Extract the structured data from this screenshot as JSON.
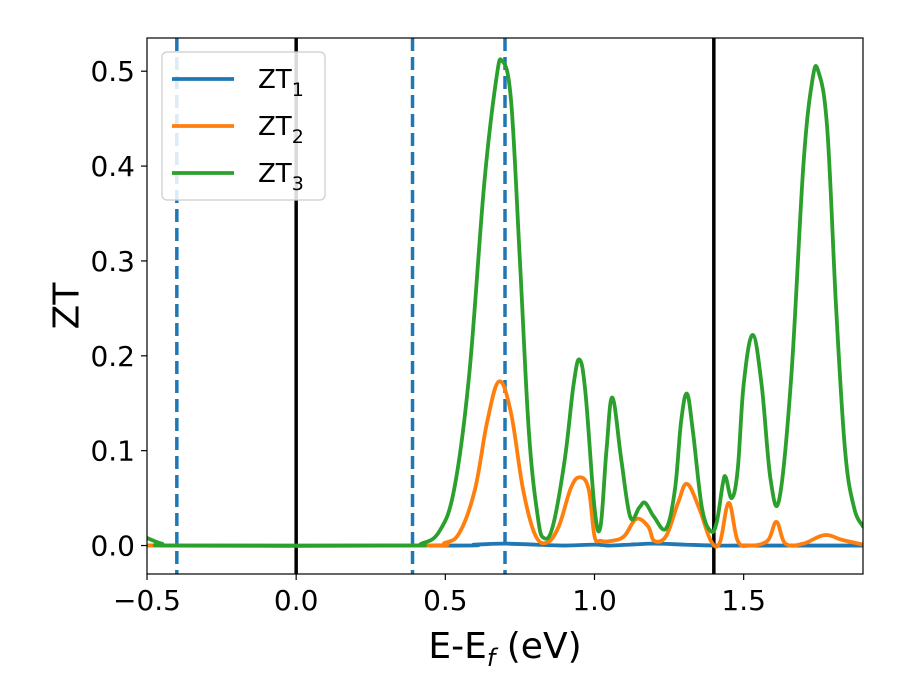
{
  "chart_data": {
    "type": "line",
    "xlabel": "E-E",
    "xlabel_sub": "f",
    "xlabel_unit": " (eV)",
    "ylabel": "ZT",
    "xlim": [
      -0.5,
      1.9
    ],
    "ylim": [
      -0.03,
      0.535
    ],
    "xticks": [
      -0.5,
      0.0,
      0.5,
      1.0,
      1.5
    ],
    "xtick_labels": [
      "−0.5",
      "0.0",
      "0.5",
      "1.0",
      "1.5"
    ],
    "yticks": [
      0.0,
      0.1,
      0.2,
      0.3,
      0.4,
      0.5
    ],
    "ytick_labels": [
      "0.0",
      "0.1",
      "0.2",
      "0.3",
      "0.4",
      "0.5"
    ],
    "grid": false,
    "legend_position": "top-left",
    "vlines": [
      {
        "x": -0.4,
        "style": "dashed",
        "color": "#1f77b4"
      },
      {
        "x": 0.0,
        "style": "solid",
        "color": "#000000"
      },
      {
        "x": 0.39,
        "style": "dashed",
        "color": "#1f77b4"
      },
      {
        "x": 0.7,
        "style": "dashed",
        "color": "#1f77b4"
      },
      {
        "x": 1.4,
        "style": "solid",
        "color": "#000000"
      }
    ],
    "series": [
      {
        "name": "ZT",
        "name_sub": "1",
        "color": "#1f77b4",
        "points": [
          [
            -0.5,
            0.0
          ],
          [
            0.5,
            0.0
          ],
          [
            0.6,
            0.001
          ],
          [
            0.7,
            0.002
          ],
          [
            0.8,
            0.001
          ],
          [
            0.9,
            0.0
          ],
          [
            1.0,
            0.001
          ],
          [
            1.05,
            0.0
          ],
          [
            1.12,
            0.001
          ],
          [
            1.2,
            0.002
          ],
          [
            1.3,
            0.001
          ],
          [
            1.4,
            0.0
          ],
          [
            1.5,
            0.0
          ],
          [
            1.9,
            0.0
          ]
        ]
      },
      {
        "name": "ZT",
        "name_sub": "2",
        "color": "#ff7f0e",
        "points": [
          [
            -0.5,
            0.0
          ],
          [
            0.4,
            0.0
          ],
          [
            0.5,
            0.003
          ],
          [
            0.55,
            0.015
          ],
          [
            0.6,
            0.06
          ],
          [
            0.64,
            0.13
          ],
          [
            0.68,
            0.173
          ],
          [
            0.72,
            0.14
          ],
          [
            0.76,
            0.06
          ],
          [
            0.8,
            0.012
          ],
          [
            0.84,
            0.003
          ],
          [
            0.88,
            0.02
          ],
          [
            0.92,
            0.06
          ],
          [
            0.95,
            0.072
          ],
          [
            0.98,
            0.06
          ],
          [
            1.0,
            0.01
          ],
          [
            1.02,
            0.005
          ],
          [
            1.06,
            0.005
          ],
          [
            1.1,
            0.01
          ],
          [
            1.14,
            0.028
          ],
          [
            1.18,
            0.02
          ],
          [
            1.2,
            0.005
          ],
          [
            1.24,
            0.01
          ],
          [
            1.28,
            0.045
          ],
          [
            1.31,
            0.065
          ],
          [
            1.35,
            0.04
          ],
          [
            1.39,
            0.005
          ],
          [
            1.42,
            0.003
          ],
          [
            1.45,
            0.045
          ],
          [
            1.48,
            0.005
          ],
          [
            1.52,
            0.0
          ],
          [
            1.58,
            0.005
          ],
          [
            1.61,
            0.025
          ],
          [
            1.64,
            0.002
          ],
          [
            1.7,
            0.002
          ],
          [
            1.77,
            0.011
          ],
          [
            1.83,
            0.006
          ],
          [
            1.9,
            0.001
          ]
        ]
      },
      {
        "name": "ZT",
        "name_sub": "3",
        "color": "#2ca02c",
        "points": [
          [
            -0.5,
            0.008
          ],
          [
            -0.45,
            0.002
          ],
          [
            -0.4,
            0.0
          ],
          [
            0.35,
            0.0
          ],
          [
            0.42,
            0.002
          ],
          [
            0.48,
            0.015
          ],
          [
            0.53,
            0.06
          ],
          [
            0.58,
            0.18
          ],
          [
            0.63,
            0.38
          ],
          [
            0.67,
            0.49
          ],
          [
            0.69,
            0.511
          ],
          [
            0.72,
            0.47
          ],
          [
            0.75,
            0.3
          ],
          [
            0.78,
            0.12
          ],
          [
            0.81,
            0.03
          ],
          [
            0.83,
            0.008
          ],
          [
            0.86,
            0.02
          ],
          [
            0.9,
            0.09
          ],
          [
            0.93,
            0.17
          ],
          [
            0.95,
            0.196
          ],
          [
            0.97,
            0.16
          ],
          [
            1.0,
            0.04
          ],
          [
            1.02,
            0.02
          ],
          [
            1.04,
            0.1
          ],
          [
            1.06,
            0.156
          ],
          [
            1.09,
            0.09
          ],
          [
            1.12,
            0.03
          ],
          [
            1.15,
            0.04
          ],
          [
            1.17,
            0.045
          ],
          [
            1.2,
            0.03
          ],
          [
            1.24,
            0.018
          ],
          [
            1.27,
            0.06
          ],
          [
            1.29,
            0.13
          ],
          [
            1.31,
            0.16
          ],
          [
            1.33,
            0.12
          ],
          [
            1.36,
            0.04
          ],
          [
            1.39,
            0.015
          ],
          [
            1.41,
            0.025
          ],
          [
            1.43,
            0.065
          ],
          [
            1.44,
            0.072
          ],
          [
            1.46,
            0.05
          ],
          [
            1.48,
            0.08
          ],
          [
            1.5,
            0.17
          ],
          [
            1.53,
            0.222
          ],
          [
            1.56,
            0.17
          ],
          [
            1.59,
            0.07
          ],
          [
            1.62,
            0.05
          ],
          [
            1.66,
            0.18
          ],
          [
            1.7,
            0.4
          ],
          [
            1.73,
            0.49
          ],
          [
            1.75,
            0.5
          ],
          [
            1.78,
            0.44
          ],
          [
            1.81,
            0.25
          ],
          [
            1.84,
            0.1
          ],
          [
            1.87,
            0.04
          ],
          [
            1.9,
            0.02
          ]
        ]
      }
    ]
  }
}
